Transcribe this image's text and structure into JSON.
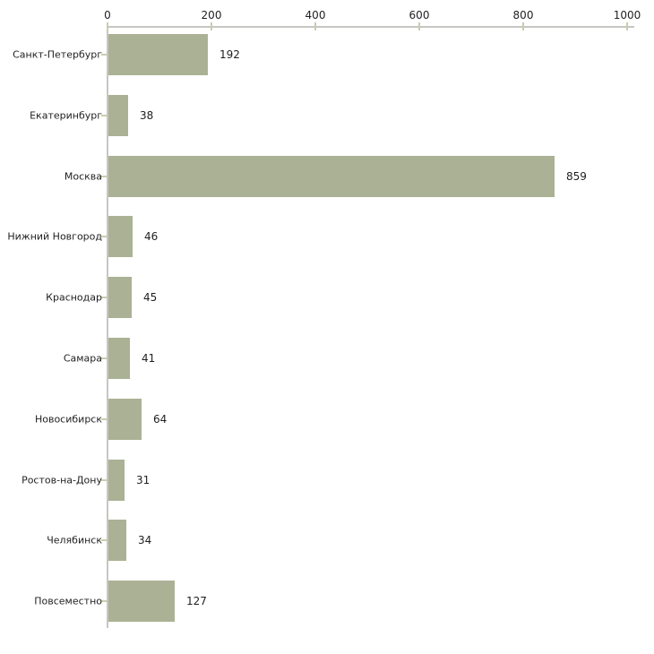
{
  "chart_data": {
    "type": "bar",
    "orientation": "horizontal",
    "title": "",
    "xlabel": "",
    "ylabel": "",
    "categories": [
      "Санкт-Петербург",
      "Екатеринбург",
      "Москва",
      "Нижний Новгород",
      "Краснодар",
      "Самара",
      "Новосибирск",
      "Ростов-на-Дону",
      "Челябинск",
      "Повсеместно"
    ],
    "values": [
      192,
      38,
      859,
      46,
      45,
      41,
      64,
      31,
      34,
      127
    ],
    "value_labels": [
      "192",
      "38",
      "859",
      "46",
      "45",
      "41",
      "64",
      "31",
      "34",
      "127"
    ],
    "xlim": [
      0,
      1000
    ],
    "x_ticks": [
      0,
      200,
      400,
      600,
      800,
      1000
    ],
    "x_tick_labels": [
      "0",
      "200",
      "400",
      "600",
      "800",
      "1000"
    ],
    "axis_position": "top",
    "grid": false,
    "legend": false,
    "colors": {
      "bar_fill": "#abb194",
      "axis_line": "#c6c6c3",
      "tick_mark": "#c9cdab",
      "text": "#1f1f1f",
      "background": "#ffffff"
    }
  }
}
